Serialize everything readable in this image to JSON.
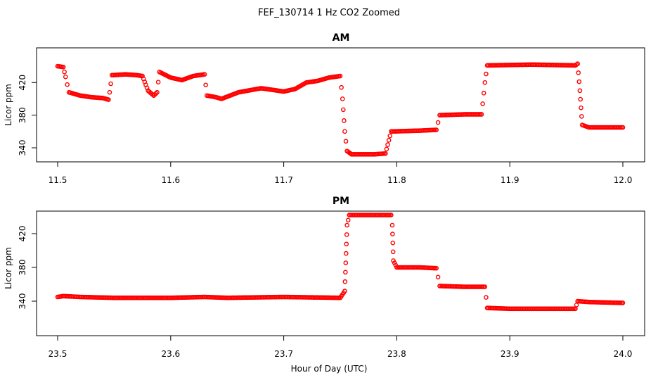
{
  "figure": {
    "title": "FEF_130714  1 Hz CO2 Zoomed",
    "xlabel": "Hour of Day (UTC)"
  },
  "style": {
    "point_color": "#ff0000",
    "frame_color": "#000000"
  },
  "chart_data": [
    {
      "type": "scatter",
      "title": "AM",
      "ylabel": "Licor ppm",
      "xlim": [
        11.5,
        12.0
      ],
      "ylim": [
        328,
        446
      ],
      "xticks": [
        11.5,
        11.6,
        11.7,
        11.8,
        11.9,
        12.0
      ],
      "xtick_labels": [
        "11.5",
        "11.6",
        "11.7",
        "11.8",
        "11.9",
        "12.0"
      ],
      "yticks": [
        340,
        380,
        420
      ],
      "ytick_labels": [
        "340",
        "380",
        "420"
      ],
      "grid": false,
      "series": [
        {
          "points": [
            [
              11.5,
              440
            ],
            [
              11.505,
              439
            ],
            [
              11.507,
              427
            ],
            [
              11.51,
              408
            ],
            [
              11.52,
              404
            ],
            [
              11.53,
              402
            ],
            [
              11.54,
              401
            ],
            [
              11.545,
              399
            ],
            [
              11.546,
              408
            ],
            [
              11.548,
              429
            ],
            [
              11.56,
              430
            ],
            [
              11.57,
              429
            ],
            [
              11.575,
              428
            ],
            [
              11.58,
              410
            ],
            [
              11.585,
              404
            ],
            [
              11.588,
              408
            ],
            [
              11.59,
              433
            ],
            [
              11.6,
              426
            ],
            [
              11.61,
              423
            ],
            [
              11.62,
              428
            ],
            [
              11.63,
              430
            ],
            [
              11.632,
              404
            ],
            [
              11.64,
              402
            ],
            [
              11.645,
              400
            ],
            [
              11.66,
              408
            ],
            [
              11.68,
              413
            ],
            [
              11.7,
              409
            ],
            [
              11.71,
              412
            ],
            [
              11.72,
              420
            ],
            [
              11.73,
              422
            ],
            [
              11.74,
              426
            ],
            [
              11.75,
              428
            ],
            [
              11.752,
              400
            ],
            [
              11.754,
              360
            ],
            [
              11.756,
              336
            ],
            [
              11.76,
              332
            ],
            [
              11.78,
              332
            ],
            [
              11.79,
              333
            ],
            [
              11.795,
              360
            ],
            [
              11.82,
              361
            ],
            [
              11.835,
              362
            ],
            [
              11.838,
              380
            ],
            [
              11.86,
              381
            ],
            [
              11.875,
              381
            ],
            [
              11.878,
              420
            ],
            [
              11.88,
              441
            ],
            [
              11.92,
              442
            ],
            [
              11.958,
              441
            ],
            [
              11.96,
              443
            ],
            [
              11.962,
              410
            ],
            [
              11.964,
              368
            ],
            [
              11.97,
              365
            ],
            [
              12.0,
              365
            ]
          ]
        }
      ]
    },
    {
      "type": "scatter",
      "title": "PM",
      "ylabel": "Licor ppm",
      "xlim": [
        23.5,
        24.0
      ],
      "ylim": [
        313,
        446
      ],
      "xticks": [
        23.5,
        23.6,
        23.7,
        23.8,
        23.9,
        24.0
      ],
      "xtick_labels": [
        "23.5",
        "23.6",
        "23.7",
        "23.8",
        "23.9",
        "24.0"
      ],
      "yticks": [
        340,
        380,
        420
      ],
      "ytick_labels": [
        "340",
        "380",
        "420"
      ],
      "grid": false,
      "series": [
        {
          "points": [
            [
              23.5,
              345
            ],
            [
              23.505,
              346
            ],
            [
              23.52,
              345
            ],
            [
              23.55,
              344
            ],
            [
              23.6,
              344
            ],
            [
              23.63,
              345
            ],
            [
              23.65,
              344
            ],
            [
              23.7,
              345
            ],
            [
              23.75,
              344
            ],
            [
              23.754,
              352
            ],
            [
              23.756,
              430
            ],
            [
              23.758,
              442
            ],
            [
              23.77,
              442
            ],
            [
              23.795,
              442
            ],
            [
              23.796,
              430
            ],
            [
              23.797,
              388
            ],
            [
              23.8,
              380
            ],
            [
              23.82,
              380
            ],
            [
              23.835,
              379
            ],
            [
              23.838,
              358
            ],
            [
              23.86,
              357
            ],
            [
              23.878,
              357
            ],
            [
              23.88,
              332
            ],
            [
              23.9,
              331
            ],
            [
              23.958,
              331
            ],
            [
              23.96,
              340
            ],
            [
              23.97,
              339
            ],
            [
              24.0,
              338
            ]
          ]
        }
      ]
    }
  ]
}
